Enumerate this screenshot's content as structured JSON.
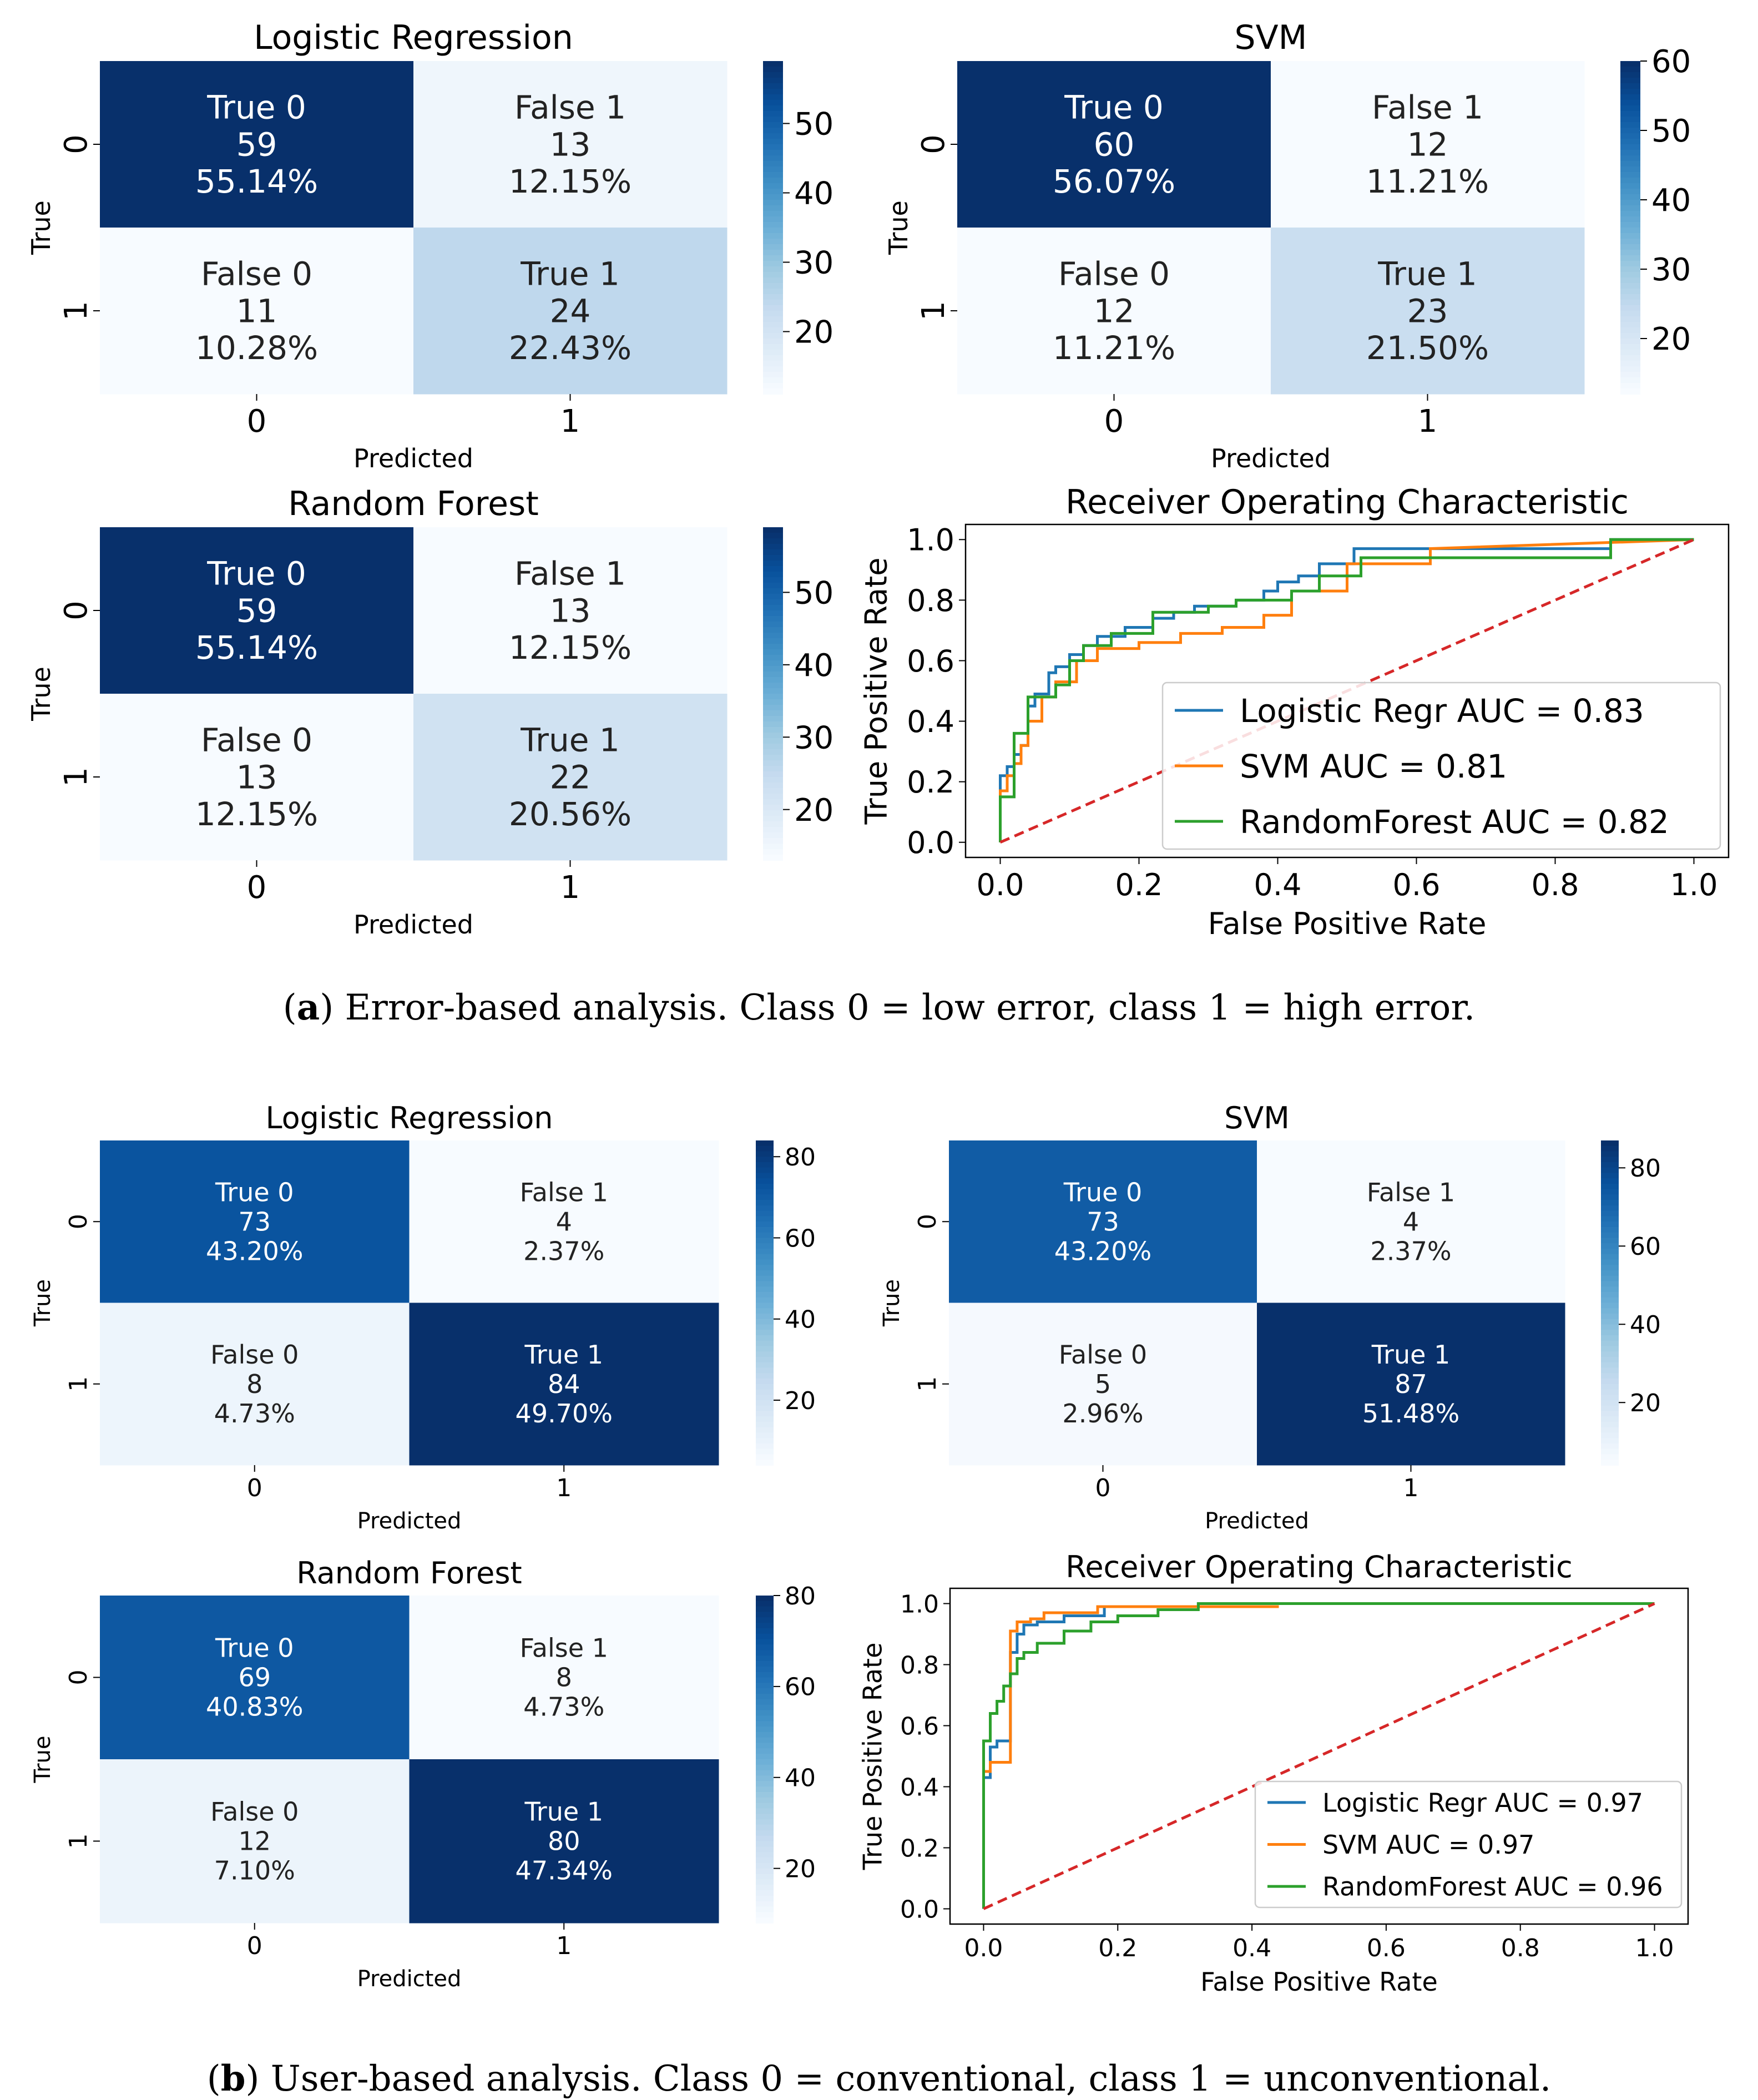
{
  "figure": {
    "caption_a": {
      "label": "a",
      "text": "Error-based analysis. Class 0 = low error, class 1 = high error."
    },
    "caption_b": {
      "label": "b",
      "text": "User-based analysis. Class 0 = conventional, class 1 = unconventional."
    }
  },
  "colors": {
    "dark": "#08306b",
    "mid": "#0b559f",
    "light": "#c6dbef",
    "pale": "#edf4fb",
    "diag": "#d62728"
  },
  "chart_data": [
    {
      "type": "heatmap",
      "id": "a-lr",
      "title": "Logistic Regression",
      "xlabel": "Predicted",
      "ylabel": "True",
      "x_ticks": [
        "0",
        "1"
      ],
      "y_ticks": [
        "0",
        "1"
      ],
      "colorbar_ticks": [
        "20",
        "30",
        "40",
        "50"
      ],
      "vmin": 11,
      "vmax": 59,
      "cells": [
        [
          {
            "label": "True 0",
            "count": "59",
            "pct": "55.14%"
          },
          {
            "label": "False 1",
            "count": "13",
            "pct": "12.15%"
          }
        ],
        [
          {
            "label": "False 0",
            "count": "11",
            "pct": "10.28%"
          },
          {
            "label": "True 1",
            "count": "24",
            "pct": "22.43%"
          }
        ]
      ]
    },
    {
      "type": "heatmap",
      "id": "a-svm",
      "title": "SVM",
      "xlabel": "Predicted",
      "ylabel": "True",
      "x_ticks": [
        "0",
        "1"
      ],
      "y_ticks": [
        "0",
        "1"
      ],
      "colorbar_ticks": [
        "20",
        "30",
        "40",
        "50",
        "60"
      ],
      "vmin": 12,
      "vmax": 60,
      "cells": [
        [
          {
            "label": "True 0",
            "count": "60",
            "pct": "56.07%"
          },
          {
            "label": "False 1",
            "count": "12",
            "pct": "11.21%"
          }
        ],
        [
          {
            "label": "False 0",
            "count": "12",
            "pct": "11.21%"
          },
          {
            "label": "True 1",
            "count": "23",
            "pct": "21.50%"
          }
        ]
      ]
    },
    {
      "type": "heatmap",
      "id": "a-rf",
      "title": "Random Forest",
      "xlabel": "Predicted",
      "ylabel": "True",
      "x_ticks": [
        "0",
        "1"
      ],
      "y_ticks": [
        "0",
        "1"
      ],
      "colorbar_ticks": [
        "20",
        "30",
        "40",
        "50"
      ],
      "vmin": 13,
      "vmax": 59,
      "cells": [
        [
          {
            "label": "True 0",
            "count": "59",
            "pct": "55.14%"
          },
          {
            "label": "False 1",
            "count": "13",
            "pct": "12.15%"
          }
        ],
        [
          {
            "label": "False 0",
            "count": "13",
            "pct": "12.15%"
          },
          {
            "label": "True 1",
            "count": "22",
            "pct": "20.56%"
          }
        ]
      ]
    },
    {
      "type": "line",
      "id": "a-roc",
      "title": "Receiver Operating Characteristic",
      "xlabel": "False Positive Rate",
      "ylabel": "True Positive Rate",
      "xlim": [
        -0.05,
        1.05
      ],
      "ylim": [
        -0.05,
        1.05
      ],
      "x_ticks": [
        "0.0",
        "0.2",
        "0.4",
        "0.6",
        "0.8",
        "1.0"
      ],
      "y_ticks": [
        "0.0",
        "0.2",
        "0.4",
        "0.6",
        "0.8",
        "1.0"
      ],
      "series": [
        {
          "name": "Logistic Regr AUC = 0.83",
          "color": "#1f77b4",
          "x": [
            0,
            0,
            0.01,
            0.01,
            0.02,
            0.02,
            0.03,
            0.03,
            0.04,
            0.04,
            0.05,
            0.05,
            0.07,
            0.07,
            0.08,
            0.08,
            0.1,
            0.1,
            0.12,
            0.12,
            0.14,
            0.14,
            0.18,
            0.18,
            0.22,
            0.22,
            0.25,
            0.25,
            0.28,
            0.28,
            0.34,
            0.34,
            0.38,
            0.38,
            0.4,
            0.4,
            0.43,
            0.43,
            0.46,
            0.46,
            0.51,
            0.51,
            0.62,
            0.62,
            0.88,
            0.88,
            1.0
          ],
          "y": [
            0,
            0.22,
            0.22,
            0.25,
            0.25,
            0.29,
            0.29,
            0.32,
            0.32,
            0.45,
            0.45,
            0.49,
            0.49,
            0.56,
            0.56,
            0.58,
            0.58,
            0.62,
            0.62,
            0.65,
            0.65,
            0.68,
            0.68,
            0.71,
            0.71,
            0.74,
            0.74,
            0.76,
            0.76,
            0.78,
            0.78,
            0.8,
            0.8,
            0.83,
            0.83,
            0.86,
            0.86,
            0.88,
            0.88,
            0.92,
            0.92,
            0.97,
            0.97,
            0.97,
            0.97,
            1.0,
            1.0
          ]
        },
        {
          "name": "SVM AUC = 0.81",
          "color": "#ff7f0e",
          "x": [
            0,
            0,
            0.01,
            0.01,
            0.02,
            0.02,
            0.03,
            0.03,
            0.04,
            0.04,
            0.06,
            0.06,
            0.08,
            0.08,
            0.11,
            0.11,
            0.14,
            0.14,
            0.2,
            0.2,
            0.26,
            0.26,
            0.32,
            0.32,
            0.38,
            0.38,
            0.42,
            0.42,
            0.5,
            0.5,
            0.62,
            0.62,
            1.0
          ],
          "y": [
            0,
            0.17,
            0.17,
            0.22,
            0.22,
            0.26,
            0.26,
            0.32,
            0.32,
            0.4,
            0.4,
            0.48,
            0.48,
            0.53,
            0.53,
            0.6,
            0.6,
            0.64,
            0.64,
            0.66,
            0.66,
            0.69,
            0.69,
            0.71,
            0.71,
            0.75,
            0.75,
            0.83,
            0.83,
            0.92,
            0.92,
            0.97,
            1.0
          ]
        },
        {
          "name": "RandomForest AUC = 0.82",
          "color": "#2ca02c",
          "x": [
            0,
            0,
            0.02,
            0.02,
            0.04,
            0.04,
            0.08,
            0.08,
            0.1,
            0.1,
            0.12,
            0.12,
            0.16,
            0.16,
            0.22,
            0.22,
            0.28,
            0.28,
            0.3,
            0.3,
            0.34,
            0.34,
            0.42,
            0.42,
            0.46,
            0.46,
            0.52,
            0.52,
            0.88,
            0.88,
            1.0
          ],
          "y": [
            0,
            0.15,
            0.15,
            0.36,
            0.36,
            0.48,
            0.48,
            0.52,
            0.52,
            0.6,
            0.6,
            0.65,
            0.65,
            0.69,
            0.69,
            0.76,
            0.76,
            0.76,
            0.76,
            0.78,
            0.78,
            0.8,
            0.8,
            0.83,
            0.83,
            0.88,
            0.88,
            0.94,
            0.94,
            1.0,
            1.0
          ]
        }
      ],
      "diagonal": {
        "x": [
          0,
          1
        ],
        "y": [
          0,
          1
        ],
        "color": "#d62728"
      },
      "legend_location": "lower right"
    },
    {
      "type": "heatmap",
      "id": "b-lr",
      "title": "Logistic Regression",
      "xlabel": "Predicted",
      "ylabel": "True",
      "x_ticks": [
        "0",
        "1"
      ],
      "y_ticks": [
        "0",
        "1"
      ],
      "colorbar_ticks": [
        "20",
        "40",
        "60",
        "80"
      ],
      "vmin": 4,
      "vmax": 84,
      "cells": [
        [
          {
            "label": "True 0",
            "count": "73",
            "pct": "43.20%"
          },
          {
            "label": "False 1",
            "count": "4",
            "pct": "2.37%"
          }
        ],
        [
          {
            "label": "False 0",
            "count": "8",
            "pct": "4.73%"
          },
          {
            "label": "True 1",
            "count": "84",
            "pct": "49.70%"
          }
        ]
      ]
    },
    {
      "type": "heatmap",
      "id": "b-svm",
      "title": "SVM",
      "xlabel": "Predicted",
      "ylabel": "True",
      "x_ticks": [
        "0",
        "1"
      ],
      "y_ticks": [
        "0",
        "1"
      ],
      "colorbar_ticks": [
        "20",
        "40",
        "60",
        "80"
      ],
      "vmin": 4,
      "vmax": 87,
      "cells": [
        [
          {
            "label": "True 0",
            "count": "73",
            "pct": "43.20%"
          },
          {
            "label": "False 1",
            "count": "4",
            "pct": "2.37%"
          }
        ],
        [
          {
            "label": "False 0",
            "count": "5",
            "pct": "2.96%"
          },
          {
            "label": "True 1",
            "count": "87",
            "pct": "51.48%"
          }
        ]
      ]
    },
    {
      "type": "heatmap",
      "id": "b-rf",
      "title": "Random Forest",
      "xlabel": "Predicted",
      "ylabel": "True",
      "x_ticks": [
        "0",
        "1"
      ],
      "y_ticks": [
        "0",
        "1"
      ],
      "colorbar_ticks": [
        "20",
        "40",
        "60",
        "80"
      ],
      "vmin": 8,
      "vmax": 80,
      "cells": [
        [
          {
            "label": "True 0",
            "count": "69",
            "pct": "40.83%"
          },
          {
            "label": "False 1",
            "count": "8",
            "pct": "4.73%"
          }
        ],
        [
          {
            "label": "False 0",
            "count": "12",
            "pct": "7.10%"
          },
          {
            "label": "True 1",
            "count": "80",
            "pct": "47.34%"
          }
        ]
      ]
    },
    {
      "type": "line",
      "id": "b-roc",
      "title": "Receiver Operating Characteristic",
      "xlabel": "False Positive Rate",
      "ylabel": "True Positive Rate",
      "xlim": [
        -0.05,
        1.05
      ],
      "ylim": [
        -0.05,
        1.05
      ],
      "x_ticks": [
        "0.0",
        "0.2",
        "0.4",
        "0.6",
        "0.8",
        "1.0"
      ],
      "y_ticks": [
        "0.0",
        "0.2",
        "0.4",
        "0.6",
        "0.8",
        "1.0"
      ],
      "series": [
        {
          "name": "Logistic Regr AUC = 0.97",
          "color": "#1f77b4",
          "x": [
            0,
            0,
            0.01,
            0.01,
            0.02,
            0.02,
            0.04,
            0.04,
            0.05,
            0.05,
            0.06,
            0.06,
            0.08,
            0.08,
            0.12,
            0.12,
            0.18,
            0.18,
            0.32,
            0.32,
            1.0
          ],
          "y": [
            0,
            0.43,
            0.43,
            0.53,
            0.53,
            0.55,
            0.55,
            0.84,
            0.84,
            0.9,
            0.9,
            0.93,
            0.93,
            0.94,
            0.94,
            0.96,
            0.96,
            0.99,
            0.99,
            1.0,
            1.0
          ]
        },
        {
          "name": "SVM AUC = 0.97",
          "color": "#ff7f0e",
          "x": [
            0,
            0,
            0.01,
            0.01,
            0.04,
            0.04,
            0.05,
            0.05,
            0.07,
            0.07,
            0.09,
            0.09,
            0.17,
            0.17,
            0.44
          ],
          "y": [
            0,
            0.45,
            0.45,
            0.48,
            0.48,
            0.91,
            0.91,
            0.94,
            0.94,
            0.95,
            0.95,
            0.97,
            0.97,
            0.99,
            0.99
          ]
        },
        {
          "name": "RandomForest AUC = 0.96",
          "color": "#2ca02c",
          "x": [
            0,
            0,
            0.01,
            0.01,
            0.02,
            0.02,
            0.03,
            0.03,
            0.04,
            0.04,
            0.05,
            0.05,
            0.06,
            0.06,
            0.08,
            0.08,
            0.12,
            0.12,
            0.16,
            0.16,
            0.2,
            0.2,
            0.26,
            0.26,
            0.32,
            0.32,
            1.0
          ],
          "y": [
            0,
            0.55,
            0.55,
            0.64,
            0.64,
            0.68,
            0.68,
            0.73,
            0.73,
            0.77,
            0.77,
            0.82,
            0.82,
            0.84,
            0.84,
            0.87,
            0.87,
            0.91,
            0.91,
            0.94,
            0.94,
            0.96,
            0.96,
            0.98,
            0.98,
            1.0,
            1.0
          ]
        }
      ],
      "diagonal": {
        "x": [
          0,
          1
        ],
        "y": [
          0,
          1
        ],
        "color": "#d62728"
      },
      "legend_location": "lower right"
    }
  ]
}
